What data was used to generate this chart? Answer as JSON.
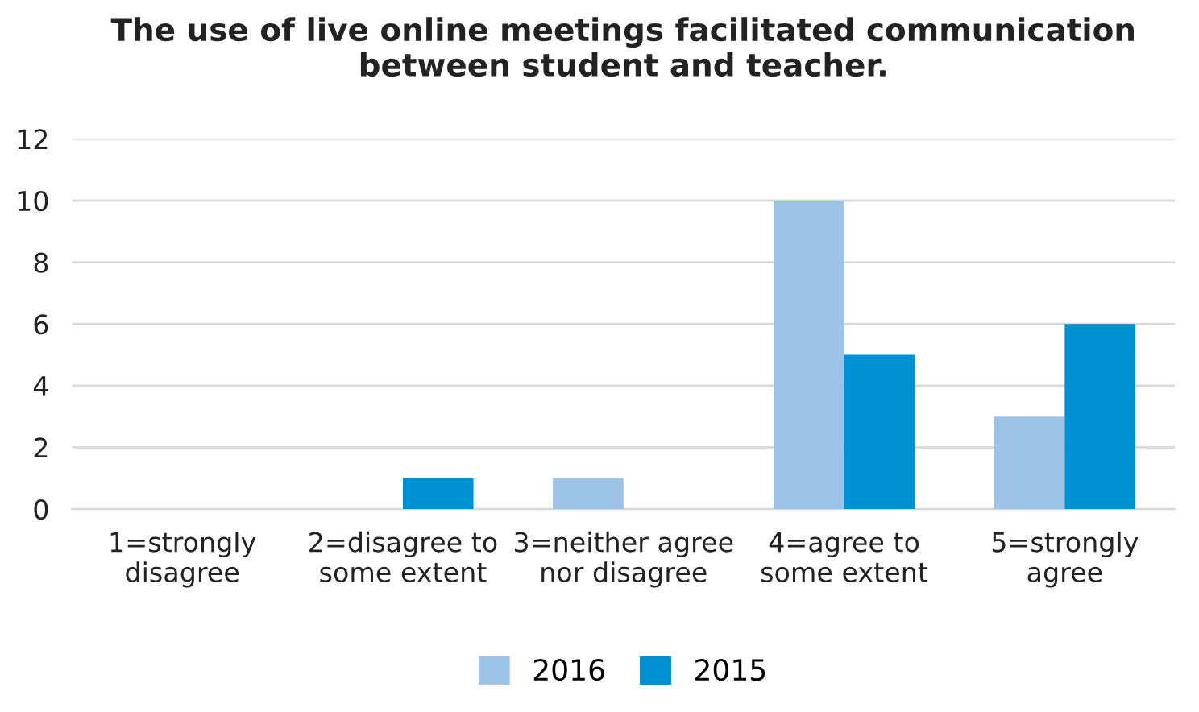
{
  "chart_data": {
    "type": "bar",
    "title": "The use of live online meetings facilitated communication\nbetween student and teacher.",
    "categories": [
      "1=strongly\ndisagree",
      "2=disagree to\nsome extent",
      "3=neither agree\nnor disagree",
      "4=agree to\nsome extent",
      "5=strongly\nagree"
    ],
    "series": [
      {
        "name": "2016",
        "color": "#9dc3e6",
        "values": [
          0,
          0,
          1,
          10,
          3
        ]
      },
      {
        "name": "2015",
        "color": "#0091d2",
        "values": [
          0,
          1,
          0,
          5,
          6
        ]
      }
    ],
    "ylim": [
      0,
      12
    ],
    "yticks": [
      0,
      2,
      4,
      6,
      8,
      10,
      12
    ],
    "grid": "y",
    "legend": "bottom"
  }
}
